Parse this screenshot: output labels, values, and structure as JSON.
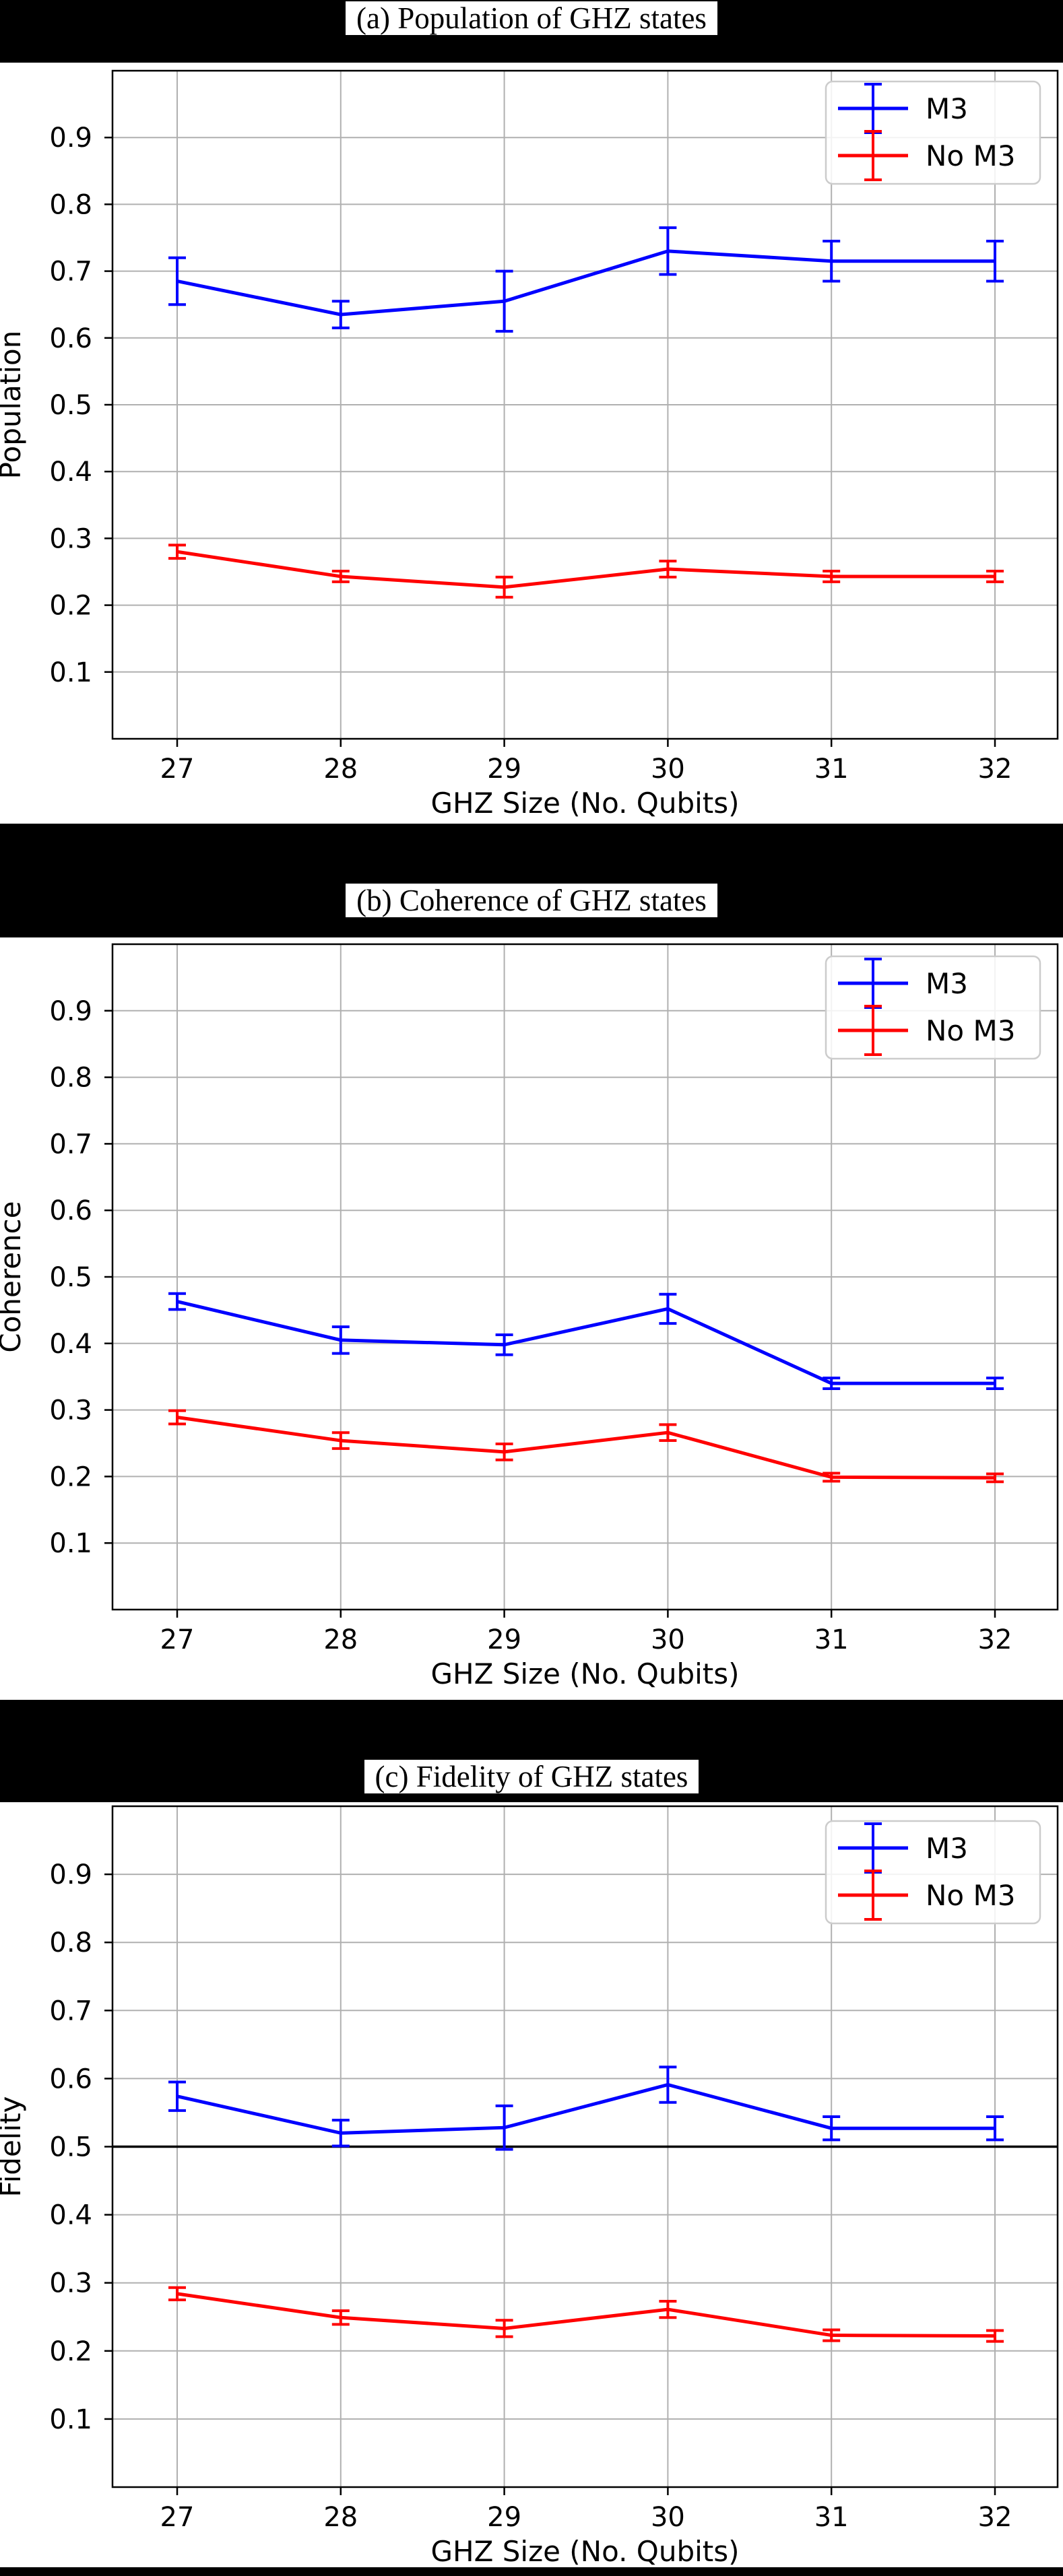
{
  "figure_colors": {
    "m3": "#0000ff",
    "no_m3": "#ff0000",
    "grid": "#b0b0b0",
    "axes": "#000000"
  },
  "chart_data": [
    {
      "id": "a",
      "type": "line",
      "title": "(a) Population of GHZ states",
      "xlabel": "GHZ Size (No. Qubits)",
      "ylabel": "Population",
      "categories": [
        27,
        28,
        29,
        30,
        31,
        32
      ],
      "ylim": [
        0,
        1
      ],
      "yticks": [
        0.1,
        0.2,
        0.3,
        0.4,
        0.5,
        0.6,
        0.7,
        0.8,
        0.9
      ],
      "grid": true,
      "legend": {
        "position": "upper right",
        "entries": [
          "M3",
          "No M3"
        ]
      },
      "series": [
        {
          "name": "M3",
          "color": "#0000ff",
          "values": [
            0.685,
            0.635,
            0.655,
            0.73,
            0.715,
            0.715
          ],
          "errors": [
            0.035,
            0.02,
            0.045,
            0.035,
            0.03,
            0.03
          ]
        },
        {
          "name": "No M3",
          "color": "#ff0000",
          "values": [
            0.28,
            0.243,
            0.227,
            0.254,
            0.243,
            0.243
          ],
          "errors": [
            0.01,
            0.008,
            0.015,
            0.012,
            0.008,
            0.008
          ]
        }
      ]
    },
    {
      "id": "b",
      "type": "line",
      "title": "(b) Coherence of GHZ states",
      "xlabel": "GHZ Size (No. Qubits)",
      "ylabel": "Coherence",
      "categories": [
        27,
        28,
        29,
        30,
        31,
        32
      ],
      "ylim": [
        0,
        1
      ],
      "yticks": [
        0.1,
        0.2,
        0.3,
        0.4,
        0.5,
        0.6,
        0.7,
        0.8,
        0.9
      ],
      "grid": true,
      "legend": {
        "position": "upper right",
        "entries": [
          "M3",
          "No M3"
        ]
      },
      "series": [
        {
          "name": "M3",
          "color": "#0000ff",
          "values": [
            0.463,
            0.405,
            0.398,
            0.452,
            0.34,
            0.34
          ],
          "errors": [
            0.012,
            0.02,
            0.015,
            0.022,
            0.008,
            0.008
          ]
        },
        {
          "name": "No M3",
          "color": "#ff0000",
          "values": [
            0.289,
            0.254,
            0.237,
            0.266,
            0.199,
            0.198
          ],
          "errors": [
            0.01,
            0.012,
            0.012,
            0.012,
            0.006,
            0.006
          ]
        }
      ]
    },
    {
      "id": "c",
      "type": "line",
      "title": "(c) Fidelity of GHZ states",
      "xlabel": "GHZ Size (No. Qubits)",
      "ylabel": "Fidelity",
      "categories": [
        27,
        28,
        29,
        30,
        31,
        32
      ],
      "ylim": [
        0,
        1
      ],
      "yticks": [
        0.1,
        0.2,
        0.3,
        0.4,
        0.5,
        0.6,
        0.7,
        0.8,
        0.9
      ],
      "grid": true,
      "hline": {
        "y": 0.5,
        "color": "#000000"
      },
      "legend": {
        "position": "upper right",
        "entries": [
          "M3",
          "No M3"
        ]
      },
      "series": [
        {
          "name": "M3",
          "color": "#0000ff",
          "values": [
            0.574,
            0.52,
            0.528,
            0.591,
            0.527,
            0.527
          ],
          "errors": [
            0.021,
            0.019,
            0.032,
            0.026,
            0.017,
            0.017
          ]
        },
        {
          "name": "No M3",
          "color": "#ff0000",
          "values": [
            0.284,
            0.249,
            0.233,
            0.261,
            0.223,
            0.222
          ],
          "errors": [
            0.009,
            0.01,
            0.012,
            0.012,
            0.008,
            0.008
          ]
        }
      ]
    }
  ]
}
